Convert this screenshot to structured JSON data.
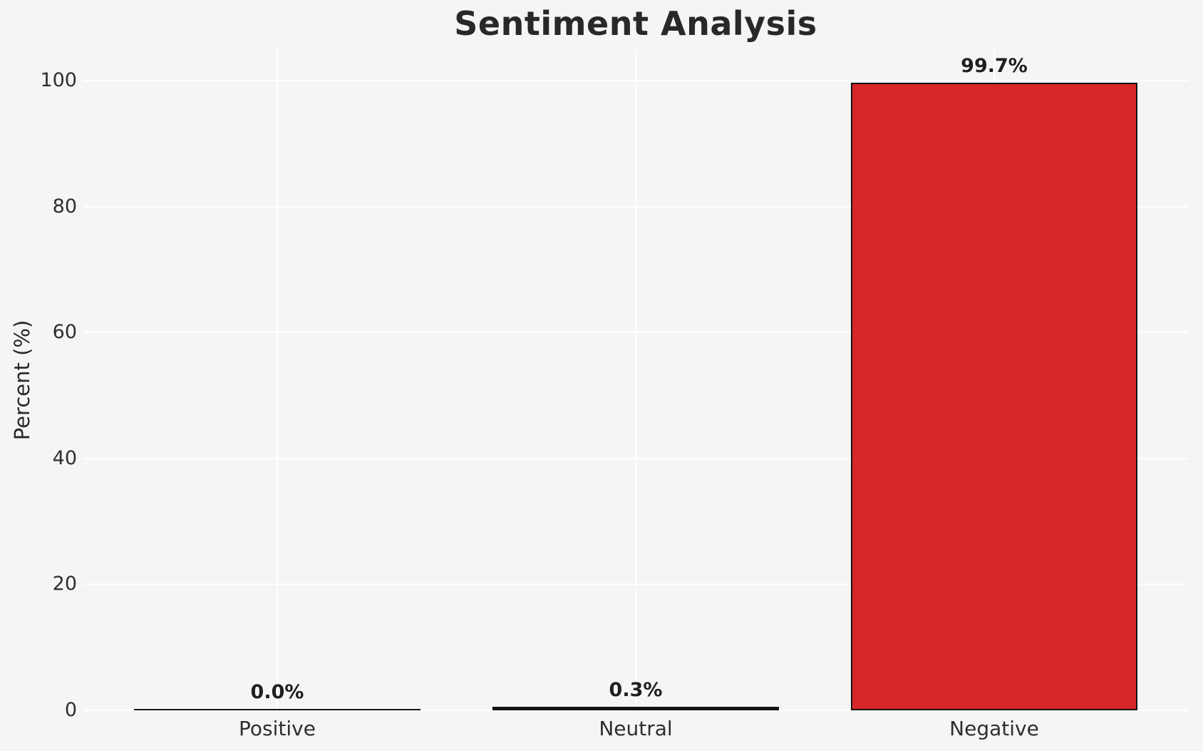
{
  "chart_data": {
    "type": "bar",
    "title": "Sentiment Analysis",
    "xlabel": "",
    "ylabel": "Percent (%)",
    "categories": [
      "Positive",
      "Neutral",
      "Negative"
    ],
    "values": [
      0.0,
      0.3,
      99.7
    ],
    "value_labels": [
      "0.0%",
      "0.3%",
      "99.7%"
    ],
    "bar_colors": [
      "#141414",
      "#141414",
      "#d62728"
    ],
    "bar_edge_color": "#141414",
    "yticks": [
      0,
      20,
      40,
      60,
      80,
      100
    ],
    "ylim": [
      0,
      104.9
    ],
    "grid": true,
    "grid_color": "#ffffff",
    "background_color": "#f5f5f5",
    "text_color": "#282828",
    "legend": "none"
  }
}
